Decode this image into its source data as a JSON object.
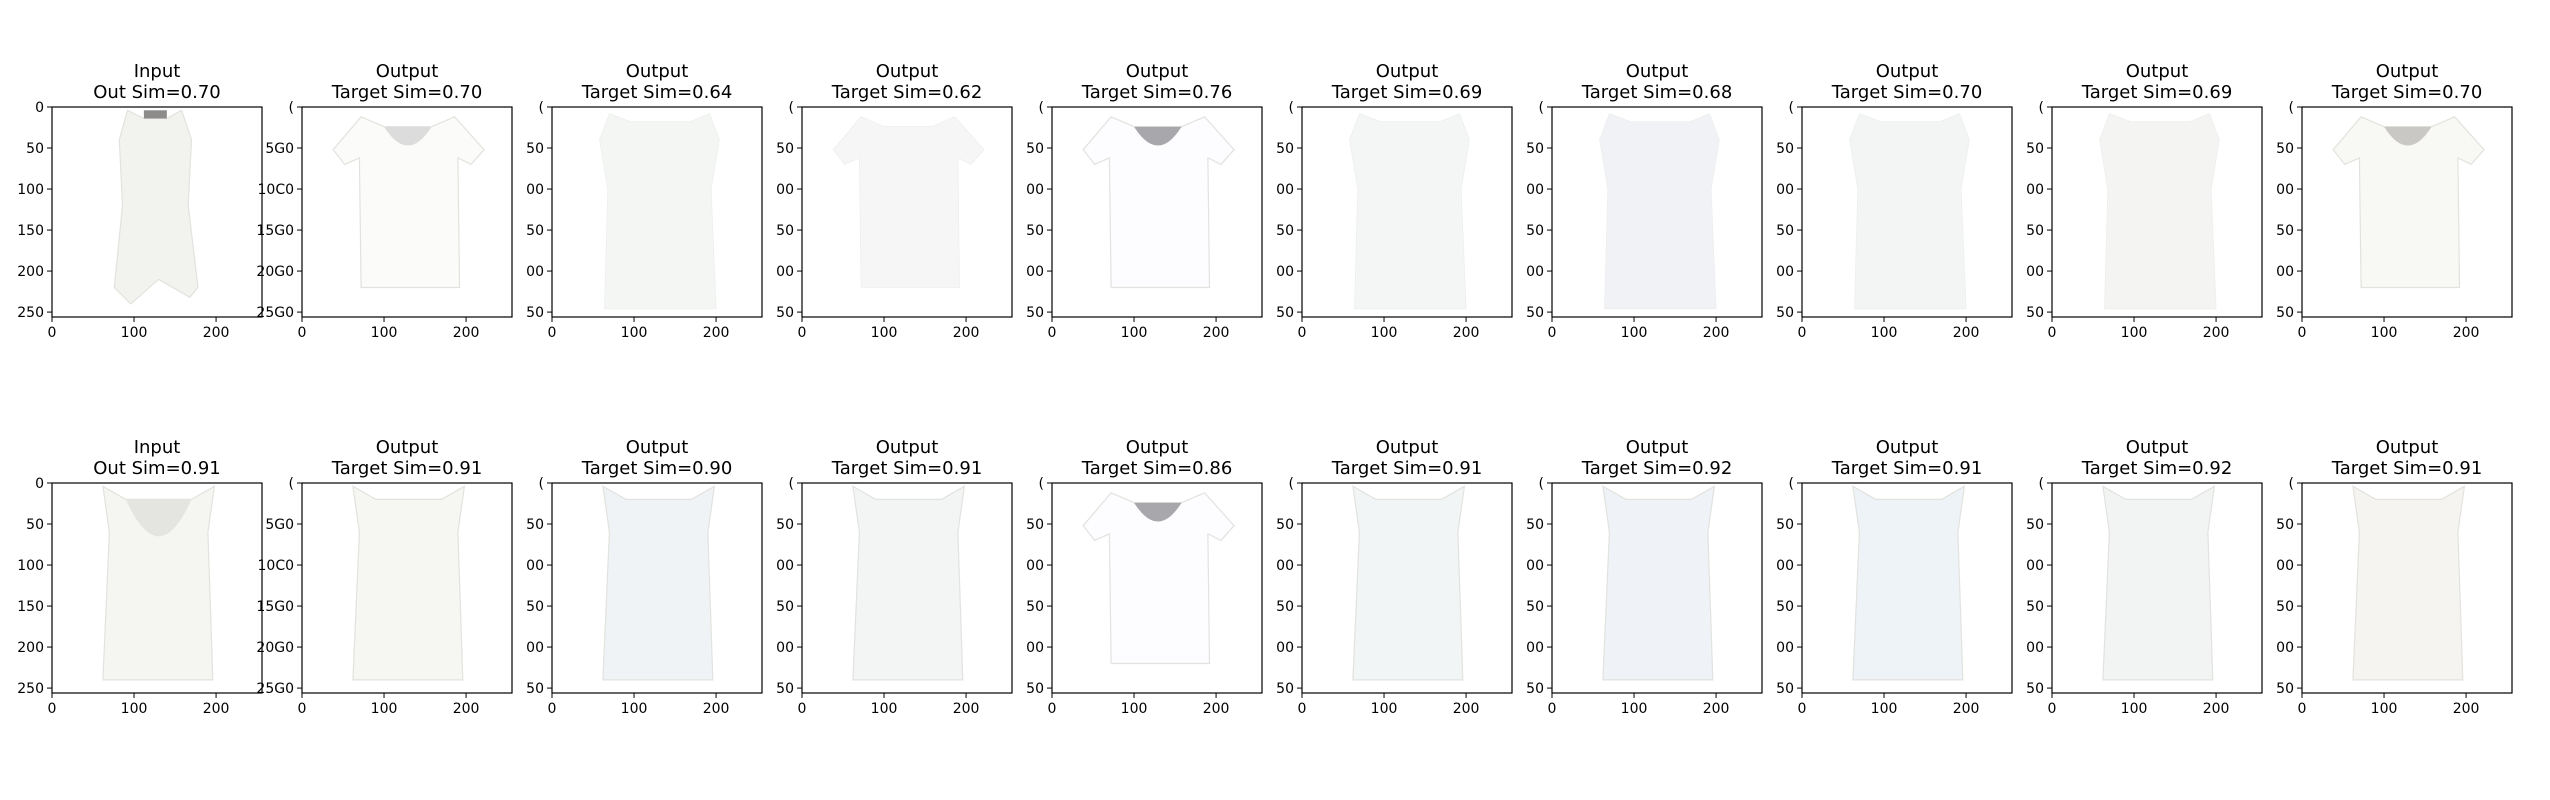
{
  "figure": {
    "rows": [
      {
        "panels": [
          {
            "title": "Input",
            "subtitle": "Out Sim=0.70",
            "garment": "top-ruffle",
            "tint": "#f2f2ee"
          },
          {
            "title": "Output",
            "subtitle": "Target Sim=0.70",
            "garment": "tshirt",
            "tint": "#fbfbf9"
          },
          {
            "title": "Output",
            "subtitle": "Target Sim=0.64",
            "garment": "faded",
            "tint": "#f4f6f4"
          },
          {
            "title": "Output",
            "subtitle": "Target Sim=0.62",
            "garment": "faded-v",
            "tint": "#f6f6f6"
          },
          {
            "title": "Output",
            "subtitle": "Target Sim=0.76",
            "garment": "tshirt-dark",
            "tint": "#fdfcfe"
          },
          {
            "title": "Output",
            "subtitle": "Target Sim=0.69",
            "garment": "faded",
            "tint": "#f4f5f5"
          },
          {
            "title": "Output",
            "subtitle": "Target Sim=0.68",
            "garment": "faded",
            "tint": "#f1f2f5"
          },
          {
            "title": "Output",
            "subtitle": "Target Sim=0.70",
            "garment": "faded",
            "tint": "#f3f5f4"
          },
          {
            "title": "Output",
            "subtitle": "Target Sim=0.69",
            "garment": "faded",
            "tint": "#f4f4f2"
          },
          {
            "title": "Output",
            "subtitle": "Target Sim=0.70",
            "garment": "tshirt-grey",
            "tint": "#f8f8f4"
          }
        ]
      },
      {
        "panels": [
          {
            "title": "Input",
            "subtitle": "Out Sim=0.91",
            "garment": "tank-lace",
            "tint": "#f5f5f2"
          },
          {
            "title": "Output",
            "subtitle": "Target Sim=0.91",
            "garment": "tank",
            "tint": "#f6f6f2"
          },
          {
            "title": "Output",
            "subtitle": "Target Sim=0.90",
            "garment": "tank",
            "tint": "#f0f3f6"
          },
          {
            "title": "Output",
            "subtitle": "Target Sim=0.91",
            "garment": "tank",
            "tint": "#f3f5f4"
          },
          {
            "title": "Output",
            "subtitle": "Target Sim=0.86",
            "garment": "tshirt-dark",
            "tint": "#fdfcfe"
          },
          {
            "title": "Output",
            "subtitle": "Target Sim=0.91",
            "garment": "tank",
            "tint": "#f2f5f6"
          },
          {
            "title": "Output",
            "subtitle": "Target Sim=0.92",
            "garment": "tank",
            "tint": "#eff3f7"
          },
          {
            "title": "Output",
            "subtitle": "Target Sim=0.91",
            "garment": "tank",
            "tint": "#eef3f8"
          },
          {
            "title": "Output",
            "subtitle": "Target Sim=0.92",
            "garment": "tank",
            "tint": "#f2f4f3"
          },
          {
            "title": "Output",
            "subtitle": "Target Sim=0.91",
            "garment": "tank",
            "tint": "#f5f4f0"
          }
        ]
      }
    ]
  },
  "chart_data": {
    "type": "image-grid",
    "x_ticks": [
      "0",
      "100",
      "200"
    ],
    "x_tick_values": [
      0,
      100,
      200
    ],
    "y_ticks": [
      "0",
      "50",
      "100",
      "150",
      "200",
      "250"
    ],
    "y_tick_values": [
      0,
      50,
      100,
      150,
      200,
      250
    ],
    "xlim": [
      0,
      256
    ],
    "ylim": [
      256,
      0
    ],
    "input_y_ticks": [
      "0",
      "50",
      "100",
      "150",
      "200",
      "250"
    ],
    "output_y_ticks_first": [
      "(",
      "5G0",
      "10C0",
      "15G0",
      "20G0",
      "25G0"
    ],
    "output_y_ticks_clipped": [
      "(",
      "50",
      "00",
      "50",
      "00",
      "50"
    ]
  }
}
